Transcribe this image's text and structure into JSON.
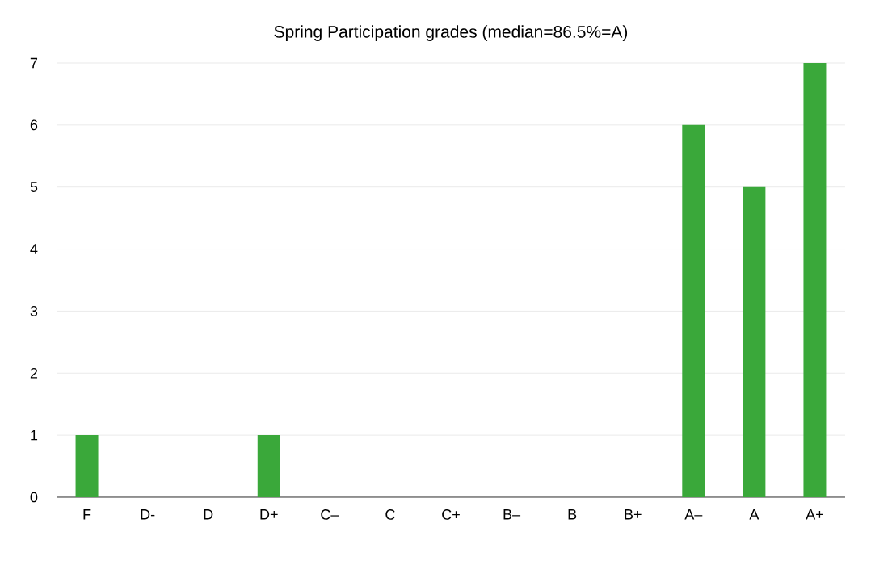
{
  "chart_data": {
    "type": "bar",
    "title": "Spring Participation grades (median=86.5%=A)",
    "categories": [
      "F",
      "D-",
      "D",
      "D+",
      "C–",
      "C",
      "C+",
      "B–",
      "B",
      "B+",
      "A–",
      "A",
      "A+"
    ],
    "values": [
      1,
      0,
      0,
      1,
      0,
      0,
      0,
      0,
      0,
      0,
      6,
      5,
      7
    ],
    "color": "#3aa83a",
    "ylim": [
      0,
      7
    ],
    "yticks": [
      0,
      1,
      2,
      3,
      4,
      5,
      6,
      7
    ],
    "grid": "y"
  }
}
